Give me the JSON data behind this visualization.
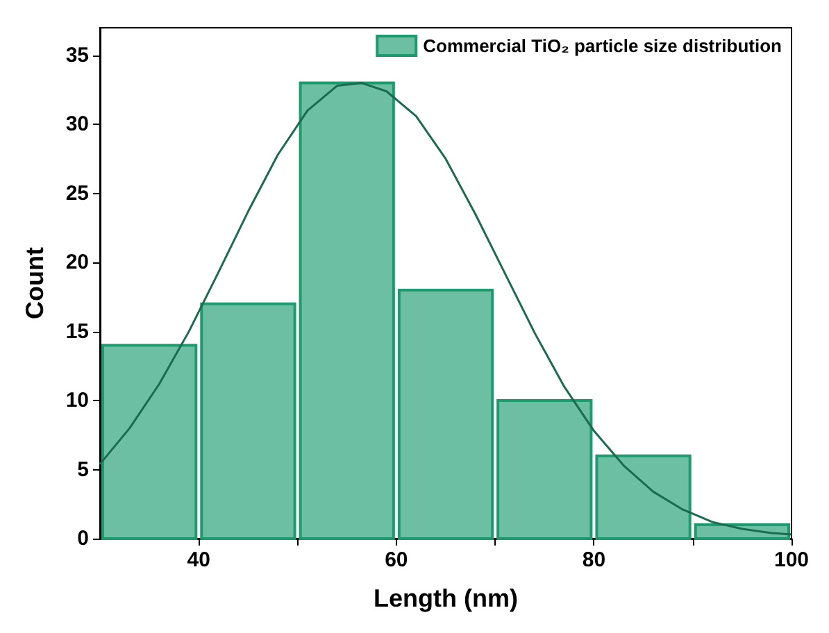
{
  "chart_data": {
    "type": "histogram",
    "xlabel": "Length (nm)",
    "ylabel": "Count",
    "bins": [
      30,
      40,
      50,
      60,
      70,
      80,
      90,
      100
    ],
    "series": [
      {
        "name": "Commercial TiO₂ particle size distribution",
        "color": "#6dbfa3",
        "values": [
          14,
          17,
          33,
          18,
          10,
          6,
          1
        ]
      },
      {
        "type": "line",
        "color": "#1a6b50",
        "x": [
          30,
          33,
          36,
          39,
          42,
          45,
          48,
          51,
          54,
          56.5,
          59,
          62,
          65,
          68,
          71,
          74,
          77,
          80,
          83,
          86,
          89,
          92,
          95,
          98,
          100
        ],
        "values": [
          5.4,
          8,
          11.2,
          15,
          19.3,
          23.7,
          27.8,
          31,
          32.8,
          33,
          32.4,
          30.6,
          27.5,
          23.5,
          19.2,
          14.9,
          11,
          7.8,
          5.3,
          3.4,
          2.1,
          1.2,
          0.7,
          0.4,
          0.3
        ]
      }
    ],
    "xlim": [
      30,
      100
    ],
    "xticks": [
      40,
      {
        "value": 50,
        "label": null
      },
      60,
      {
        "value": 70,
        "label": null
      },
      80,
      {
        "value": 90,
        "label": null
      },
      100
    ],
    "ylim": [
      0,
      37
    ],
    "yticks": [
      0,
      5,
      10,
      15,
      20,
      25,
      30,
      35
    ],
    "grid": false,
    "legend": "top right",
    "marker": "none",
    "line_style": "solid"
  }
}
